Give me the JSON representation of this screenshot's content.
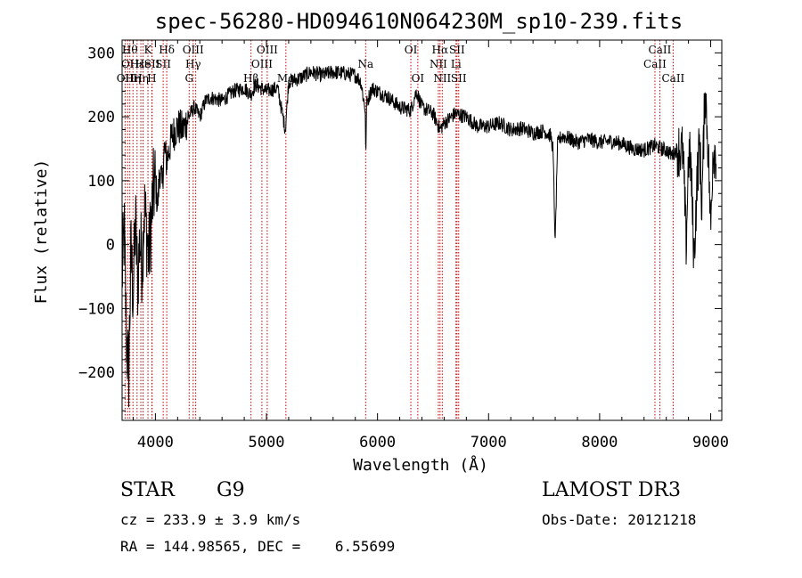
{
  "chart_data": {
    "type": "line",
    "title": "spec-56280-HD094610N064230M_sp10-239.fits",
    "xlabel": "Wavelength (Å)",
    "ylabel": "Flux (relative)",
    "xlim": [
      3700,
      9100
    ],
    "ylim": [
      -275,
      320
    ],
    "x_ticks": [
      4000,
      5000,
      6000,
      7000,
      8000,
      9000
    ],
    "y_ticks": [
      -200,
      -100,
      0,
      100,
      200,
      300
    ],
    "grid": false,
    "line_color": "#000000",
    "marker_color": "#cc0000",
    "series": [
      {
        "x": [
          3700,
          3720,
          3740,
          3760,
          3780,
          3800,
          3820,
          3840,
          3860,
          3880,
          3900,
          3920,
          3940,
          3960,
          3980,
          4000,
          4020,
          4040,
          4060,
          4080,
          4100,
          4150,
          4200,
          4250,
          4300,
          4350,
          4400,
          4450,
          4500,
          4600,
          4700,
          4800,
          4860,
          4900,
          5000,
          5100,
          5170,
          5200,
          5300,
          5400,
          5500,
          5600,
          5700,
          5800,
          5850,
          5890,
          5895,
          5900,
          5950,
          6000,
          6100,
          6200,
          6300,
          6350,
          6400,
          6500,
          6563,
          6600,
          6700,
          6800,
          6900,
          7000,
          7100,
          7200,
          7300,
          7400,
          7500,
          7560,
          7580,
          7600,
          7620,
          7640,
          7660,
          7700,
          7800,
          7900,
          8000,
          8100,
          8200,
          8300,
          8400,
          8500,
          8550,
          8600,
          8650,
          8700,
          8750,
          8780,
          8800,
          8820,
          8850,
          8880,
          8900,
          8920,
          8950,
          8980,
          9000,
          9020,
          9050
        ],
        "y": [
          -50,
          20,
          -150,
          -200,
          -10,
          -80,
          40,
          -60,
          10,
          -30,
          60,
          20,
          -20,
          30,
          80,
          100,
          60,
          120,
          90,
          150,
          130,
          170,
          185,
          180,
          200,
          215,
          200,
          225,
          230,
          225,
          240,
          245,
          235,
          250,
          240,
          245,
          180,
          255,
          260,
          270,
          265,
          270,
          268,
          265,
          255,
          210,
          120,
          220,
          245,
          240,
          230,
          215,
          210,
          240,
          215,
          205,
          180,
          190,
          205,
          200,
          185,
          185,
          190,
          180,
          182,
          175,
          178,
          170,
          150,
          0,
          155,
          165,
          170,
          168,
          160,
          165,
          160,
          162,
          158,
          150,
          148,
          155,
          150,
          148,
          140,
          150,
          145,
          0,
          140,
          130,
          -20,
          110,
          160,
          60,
          250,
          140,
          20,
          150,
          145
        ]
      }
    ],
    "lines": [
      {
        "x": 3727,
        "labels": [
          "OII"
        ],
        "rows": [
          3
        ]
      },
      {
        "x": 3750,
        "labels": [
          "OI"
        ],
        "rows": [
          2
        ]
      },
      {
        "x": 3770,
        "labels": [
          "Hθ"
        ],
        "rows": [
          1
        ]
      },
      {
        "x": 3798,
        "labels": [
          "Hη"
        ],
        "rows": [
          3
        ]
      },
      {
        "x": 3835,
        "labels": [
          "Hε"
        ],
        "rows": [
          2
        ]
      },
      {
        "x": 3869,
        "labels": [
          "Hη"
        ],
        "rows": [
          3
        ]
      },
      {
        "x": 3889,
        "labels": [
          "He"
        ],
        "rows": [
          2
        ]
      },
      {
        "x": 3933,
        "labels": [
          "K"
        ],
        "rows": [
          1
        ]
      },
      {
        "x": 3968,
        "labels": [
          "H"
        ],
        "rows": [
          3
        ]
      },
      {
        "x": 3970,
        "labels": [
          "SII"
        ],
        "rows": [
          2
        ]
      },
      {
        "x": 4102,
        "labels": [
          "Hδ"
        ],
        "rows": [
          1
        ]
      },
      {
        "x": 4070,
        "labels": [
          "SII"
        ],
        "rows": [
          2
        ]
      },
      {
        "x": 4304,
        "labels": [
          "G"
        ],
        "rows": [
          3
        ]
      },
      {
        "x": 4340,
        "labels": [
          "OIII",
          "Hγ"
        ],
        "rows": [
          1,
          2
        ]
      },
      {
        "x": 4363,
        "labels": [],
        "rows": []
      },
      {
        "x": 4861,
        "labels": [
          "Hβ"
        ],
        "rows": [
          3
        ]
      },
      {
        "x": 4959,
        "labels": [
          "OIII"
        ],
        "rows": [
          2
        ]
      },
      {
        "x": 5007,
        "labels": [
          "OIII"
        ],
        "rows": [
          1
        ]
      },
      {
        "x": 5175,
        "labels": [
          "Mg"
        ],
        "rows": [
          3
        ]
      },
      {
        "x": 5893,
        "labels": [
          "Na"
        ],
        "rows": [
          2
        ]
      },
      {
        "x": 6300,
        "labels": [
          "OI"
        ],
        "rows": [
          1
        ]
      },
      {
        "x": 6363,
        "labels": [
          "OI"
        ],
        "rows": [
          3
        ]
      },
      {
        "x": 6548,
        "labels": [
          "NII"
        ],
        "rows": [
          2
        ]
      },
      {
        "x": 6563,
        "labels": [
          "Hα"
        ],
        "rows": [
          1
        ]
      },
      {
        "x": 6583,
        "labels": [
          "NII"
        ],
        "rows": [
          3
        ]
      },
      {
        "x": 6707,
        "labels": [
          "Li"
        ],
        "rows": [
          2
        ]
      },
      {
        "x": 6716,
        "labels": [
          "SII"
        ],
        "rows": [
          1
        ]
      },
      {
        "x": 6731,
        "labels": [
          "SII"
        ],
        "rows": [
          3
        ]
      },
      {
        "x": 8498,
        "labels": [
          "CaII"
        ],
        "rows": [
          2
        ]
      },
      {
        "x": 8542,
        "labels": [
          "CaII"
        ],
        "rows": [
          1
        ]
      },
      {
        "x": 8662,
        "labels": [
          "CaII"
        ],
        "rows": [
          3
        ]
      }
    ]
  },
  "info": {
    "class": "STAR",
    "subclass": "G9",
    "survey": "LAMOST DR3",
    "cz": "cz = 233.9 ± 3.9 km/s",
    "obsdate": "Obs-Date: 20121218",
    "radec": "RA = 144.98565, DEC =    6.55699"
  }
}
